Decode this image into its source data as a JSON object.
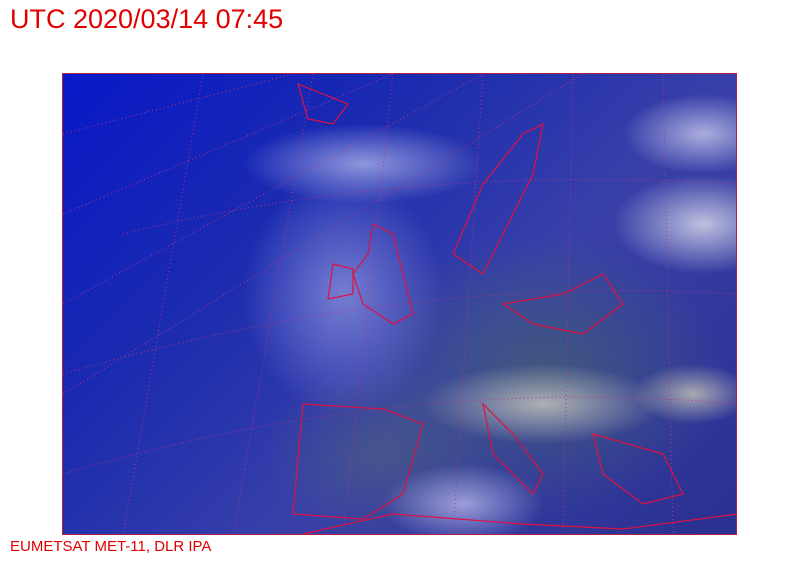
{
  "title": "UTC 2020/03/14 07:45",
  "credit": "EUMETSAT MET-11, DLR IPA",
  "colors": {
    "text": "#e00000",
    "borders": "#e01040",
    "graticule": "#c03080"
  }
}
